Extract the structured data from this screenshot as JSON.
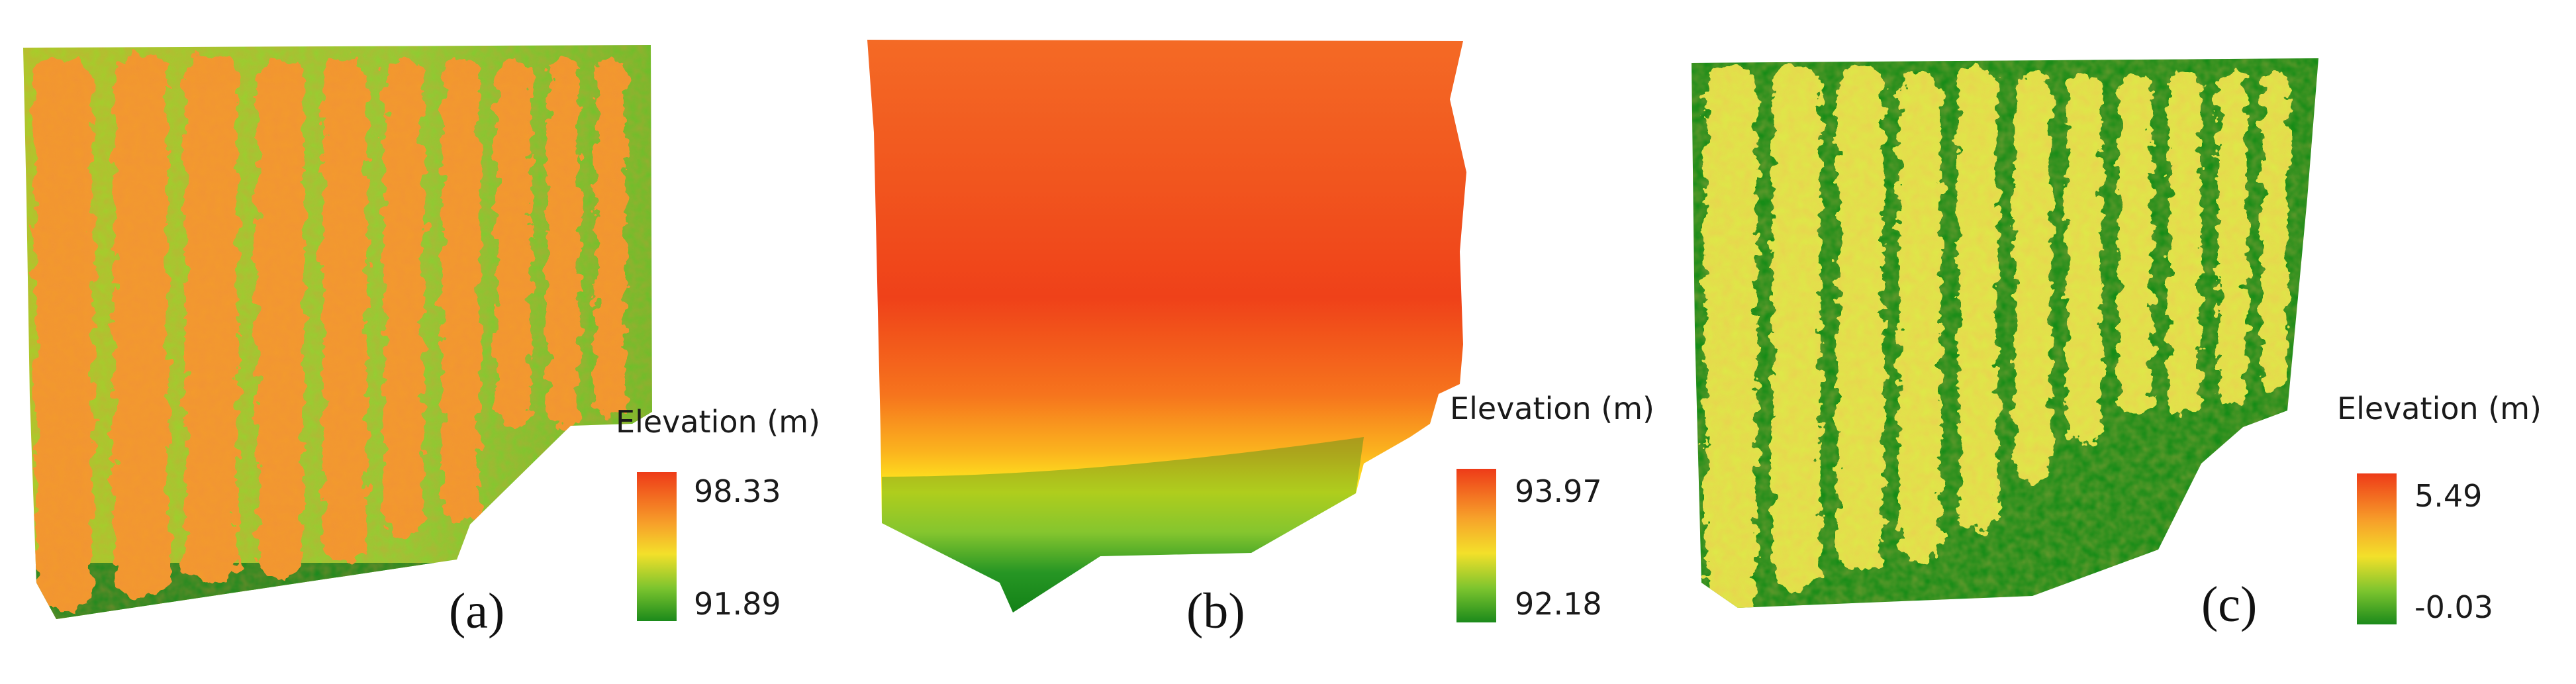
{
  "figure": {
    "panels": [
      {
        "label": "(a)",
        "legend_title": "Elevation (m)",
        "legend_max": "98.33",
        "legend_min": "91.89",
        "colors": {
          "ground": "#1f8a1f",
          "canopy": "#f07f2a",
          "background": "#8ccd2e"
        },
        "map_icon": "orchard-canopy-elevation-map"
      },
      {
        "label": "(b)",
        "legend_title": "Elevation (m)",
        "legend_max": "93.97",
        "legend_min": "92.18",
        "colors": {
          "top": "#ef3b18",
          "middle": "#ffd21a",
          "bottom": "#1a8a1a"
        },
        "map_icon": "terrain-elevation-map"
      },
      {
        "label": "(c)",
        "legend_title": "Elevation (m)",
        "legend_max": "5.49",
        "legend_min": "-0.03",
        "colors": {
          "ground": "#148a14",
          "canopy": "#d9e845",
          "hot": "#f26a22"
        },
        "map_icon": "canopy-height-map"
      }
    ]
  }
}
